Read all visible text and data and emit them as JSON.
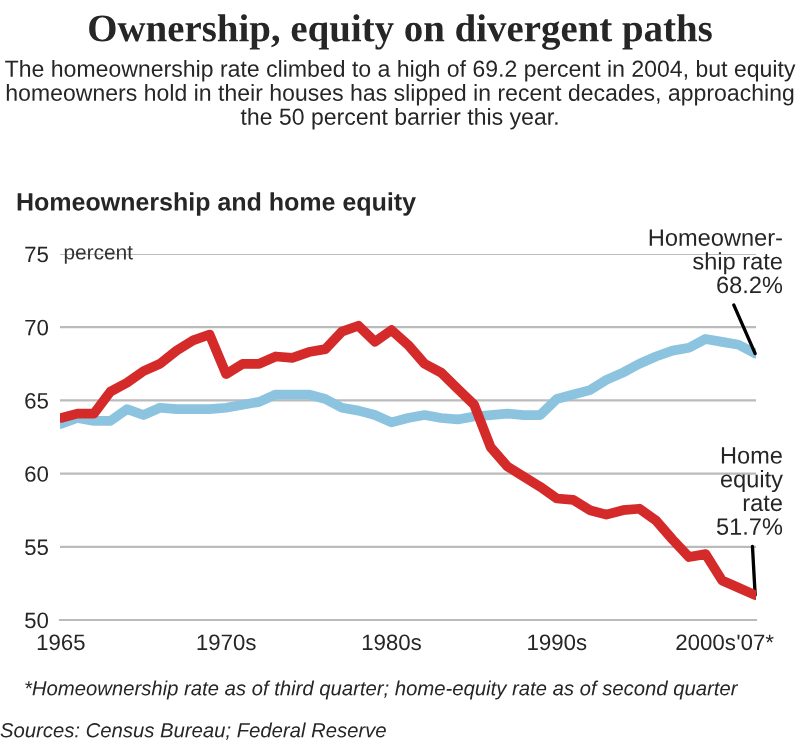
{
  "chart_data": {
    "type": "line",
    "title": "Ownership, equity on divergent paths",
    "subtitle": "The homeownership rate climbed to a high of 69.2 percent in 2004, but equity homeowners hold in their houses has slipped in recent decades, approaching the 50 percent barrier this year.",
    "categories": [
      "1965",
      null,
      null,
      null,
      null,
      null,
      null,
      null,
      null,
      null,
      "1970s",
      null,
      null,
      null,
      null,
      null,
      null,
      null,
      null,
      null,
      "1980s",
      null,
      null,
      null,
      null,
      null,
      null,
      null,
      null,
      null,
      "1990s",
      null,
      null,
      null,
      null,
      null,
      null,
      null,
      null,
      "2000s",
      null,
      null,
      "'07*"
    ],
    "ylabel": "percent",
    "series": [
      {
        "color": "#8cc4e0",
        "values": [
          63.4,
          63.8,
          63.6,
          63.6,
          64.4,
          64.0,
          64.5,
          64.4,
          64.4,
          64.4,
          64.5,
          64.7,
          64.9,
          65.4,
          65.4,
          65.4,
          65.1,
          64.5,
          64.3,
          64.0,
          63.5,
          63.8,
          64.0,
          63.8,
          63.7,
          63.9,
          64.0,
          64.1,
          64.0,
          64.0,
          65.1,
          65.4,
          65.7,
          66.4,
          66.9,
          67.5,
          68.0,
          68.4,
          68.6,
          69.2,
          69.0,
          68.8,
          68.2
        ]
      },
      {
        "color": "#d42a2a",
        "values": [
          63.8,
          64.1,
          64.1,
          65.6,
          66.2,
          67.0,
          67.5,
          68.4,
          69.1,
          69.5,
          66.8,
          67.5,
          67.5,
          68.0,
          67.9,
          68.3,
          68.5,
          69.7,
          70.1,
          69.0,
          69.8,
          68.8,
          67.5,
          66.9,
          65.8,
          64.7,
          61.8,
          60.5,
          59.8,
          59.1,
          58.3,
          58.2,
          57.5,
          57.2,
          57.5,
          57.6,
          56.8,
          55.5,
          54.3,
          54.5,
          52.7,
          52.2,
          51.7
        ]
      }
    ],
    "ylim": [
      50,
      75
    ],
    "yticks": [
      50,
      55,
      60,
      65,
      70,
      75
    ],
    "grid": "y",
    "annotations": [
      "Homeownership and home equity",
      "*Homeownership rate as of third quarter; home-equity rate as of second quarter",
      "Sources: Census Bureau; Federal Reserve",
      {
        "text": "Homeowner-\nship rate\n68.2%",
        "x": "'07*",
        "y": 68.2
      },
      {
        "text": "Home\nequity\nrate\n51.7%",
        "x": "'07*",
        "y": 51.7
      }
    ]
  }
}
